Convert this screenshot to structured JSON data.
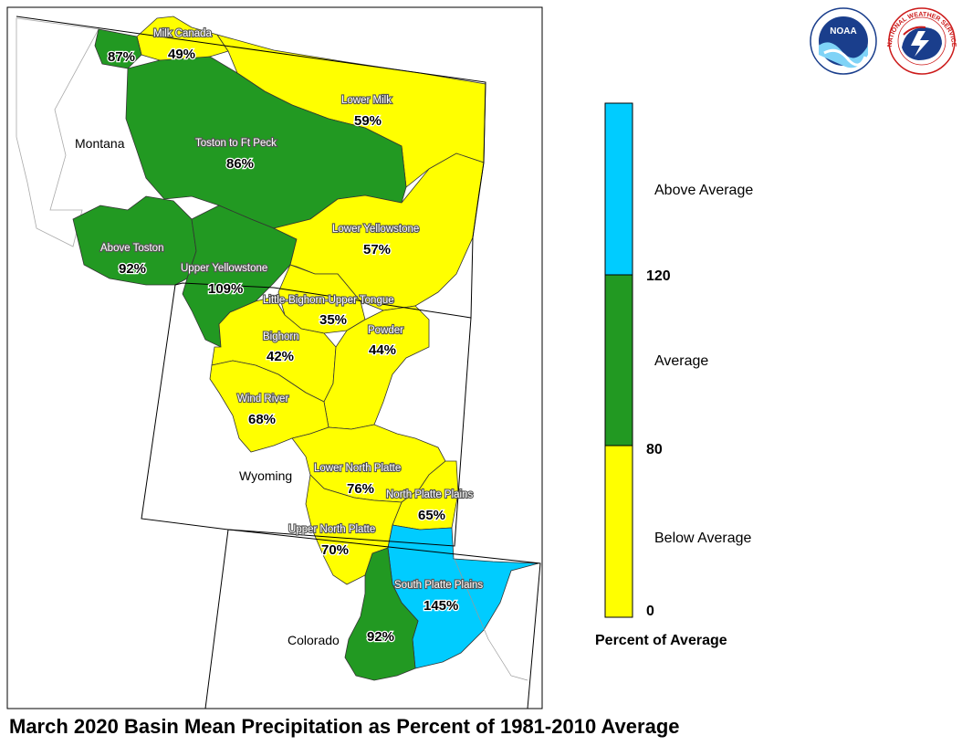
{
  "caption": "March 2020 Basin Mean Precipitation as Percent of 1981-2010 Average",
  "colors": {
    "below": "#ffff00",
    "average": "#229922",
    "above": "#00ccff",
    "border": "#000000"
  },
  "states": [
    {
      "name": "Montana"
    },
    {
      "name": "Wyoming"
    },
    {
      "name": "Colorado"
    }
  ],
  "basins": [
    {
      "name": "Milk Canada",
      "percent": "49%",
      "category": "below"
    },
    {
      "name": "",
      "percent": "87%",
      "category": "average"
    },
    {
      "name": "Lower Milk",
      "percent": "59%",
      "category": "below"
    },
    {
      "name": "Toston to Ft Peck",
      "percent": "86%",
      "category": "average"
    },
    {
      "name": "Above Toston",
      "percent": "92%",
      "category": "average"
    },
    {
      "name": "Upper Yellowstone",
      "percent": "109%",
      "category": "average"
    },
    {
      "name": "Lower Yellowstone",
      "percent": "57%",
      "category": "below"
    },
    {
      "name": "Little-Bighorn-Upper Tongue",
      "percent": "35%",
      "category": "below"
    },
    {
      "name": "Bighorn",
      "percent": "42%",
      "category": "below"
    },
    {
      "name": "Powder",
      "percent": "44%",
      "category": "below"
    },
    {
      "name": "Wind River",
      "percent": "68%",
      "category": "below"
    },
    {
      "name": "Lower North Platte",
      "percent": "76%",
      "category": "below"
    },
    {
      "name": "North Platte Plains",
      "percent": "65%",
      "category": "below"
    },
    {
      "name": "Upper North Platte",
      "percent": "70%",
      "category": "below"
    },
    {
      "name": "South Platte Plains",
      "percent": "145%",
      "category": "above"
    },
    {
      "name": "",
      "percent": "92%",
      "category": "average"
    }
  ],
  "legend": {
    "title": "Percent of Average",
    "ticks": [
      "120",
      "80",
      "0"
    ],
    "categories": [
      {
        "label": "Above Average",
        "color": "#00ccff"
      },
      {
        "label": "Average",
        "color": "#229922"
      },
      {
        "label": "Below Average",
        "color": "#ffff00"
      }
    ]
  },
  "logos": [
    {
      "text": "NOAA",
      "icon": "noaa-logo"
    },
    {
      "text": "NATIONAL WEATHER SERVICE",
      "icon": "nws-logo"
    }
  ]
}
